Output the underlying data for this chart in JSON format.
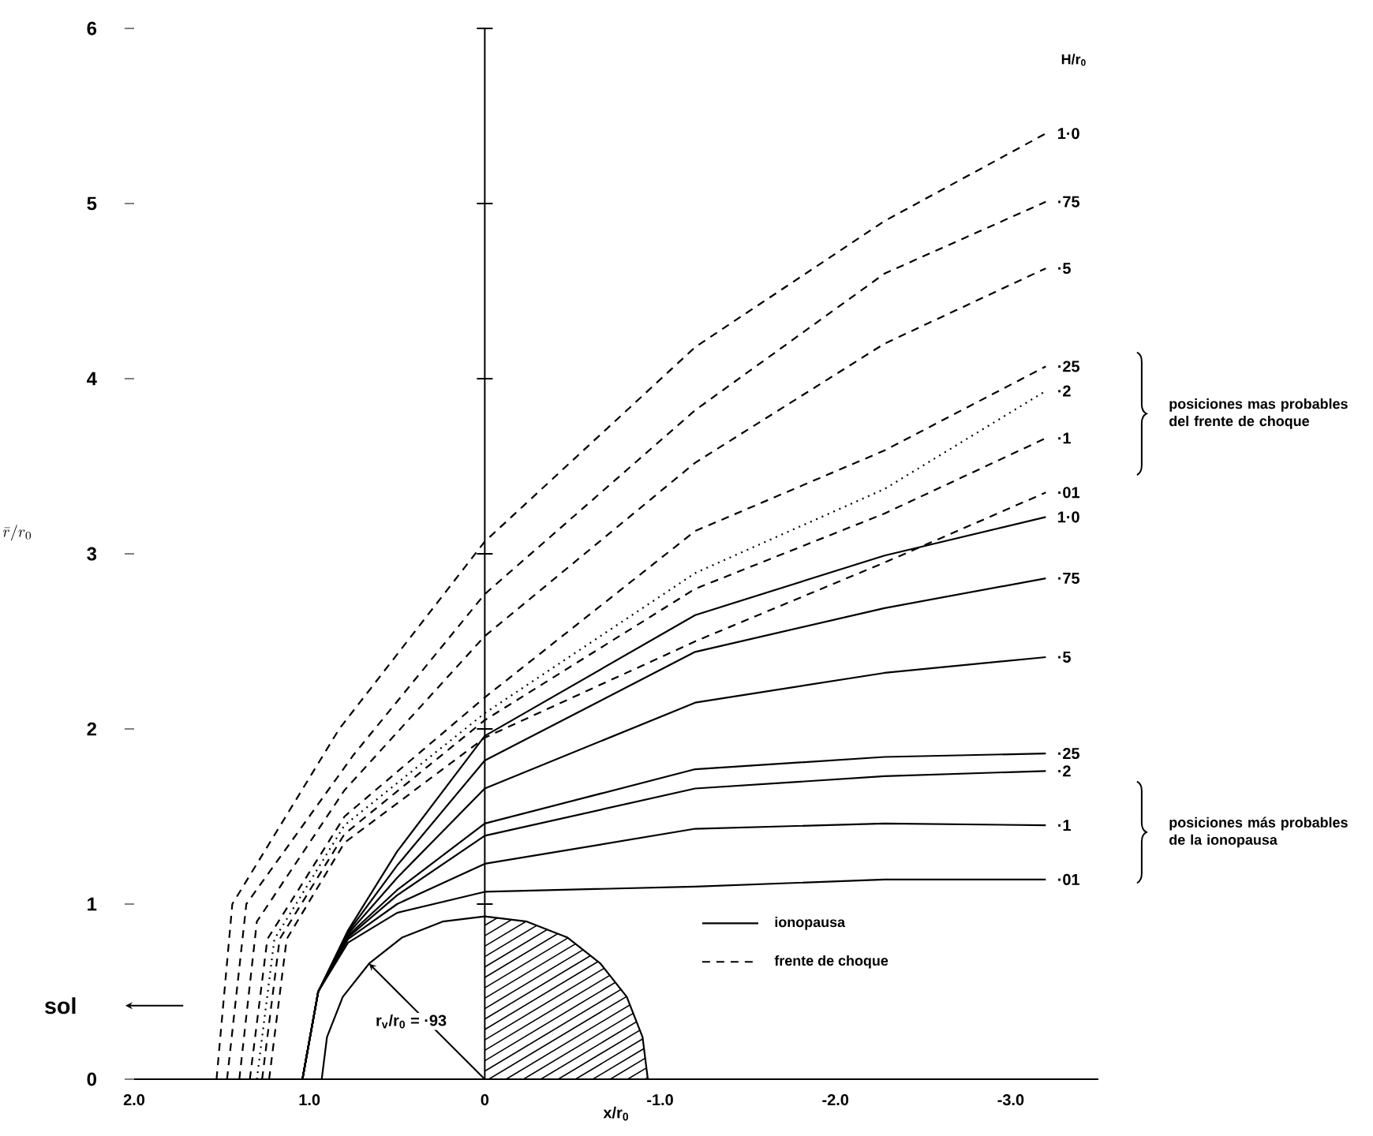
{
  "chart_data": {
    "type": "line",
    "xlabel": "x/r$_{0}$",
    "ylabel": "\\bar{r}/r_{0}",
    "xlim": [
      2.0,
      -3.5
    ],
    "ylim": [
      0,
      6
    ],
    "xticks": [
      {
        "value": 2,
        "label": "2.0"
      },
      {
        "value": 1,
        "label": "1.0"
      },
      0,
      {
        "value": -1,
        "label": "-1.0"
      },
      {
        "value": -2,
        "label": "-2.0"
      },
      {
        "value": -3,
        "label": "-3.0"
      }
    ],
    "yticks": [
      0,
      1,
      2,
      3,
      4,
      5,
      6
    ],
    "ref_lines": [
      {
        "axis": "x",
        "value": 0
      }
    ],
    "annotations": [
      "H/r$_{0}$",
      "posiciones mas probables del frente de choque",
      "posiciones más probables de la ionopausa",
      "r$_{v}$/r$_{0}$ = ·93",
      "sol",
      "ionopausa",
      "frente de choque"
    ],
    "series": [
      {
        "name": "1·0",
        "color": "#000000",
        "line_style": "dashed",
        "x": [
          1.53,
          1.44,
          0.83,
          0,
          -1.2,
          -2.28,
          -3.2
        ],
        "values": [
          0,
          1.0,
          2.0,
          3.07,
          4.18,
          4.9,
          5.4
        ]
      },
      {
        "name": "·75",
        "color": "#000000",
        "line_style": "dashed",
        "x": [
          1.47,
          1.36,
          0.75,
          0,
          -1.2,
          -2.28,
          -3.2
        ],
        "values": [
          0,
          1.0,
          1.85,
          2.77,
          3.82,
          4.6,
          5.01
        ]
      },
      {
        "name": "·5",
        "color": "#000000",
        "line_style": "dashed",
        "x": [
          1.4,
          1.3,
          0.8,
          0,
          -1.2,
          -2.28,
          -3.2
        ],
        "values": [
          0,
          0.9,
          1.65,
          2.53,
          3.52,
          4.2,
          4.63
        ]
      },
      {
        "name": "·25",
        "color": "#000000",
        "line_style": "dashed",
        "x": [
          1.34,
          1.24,
          0.8,
          0,
          -1.2,
          -2.28,
          -3.2
        ],
        "values": [
          0,
          0.8,
          1.5,
          2.18,
          3.13,
          3.59,
          4.07
        ]
      },
      {
        "name": "·2",
        "color": "#000000",
        "line_style": "dotted",
        "x": [
          1.3,
          1.2,
          0.8,
          0,
          -1.2,
          -2.28,
          -3.2
        ],
        "values": [
          0,
          0.8,
          1.45,
          2.09,
          2.89,
          3.37,
          3.93
        ]
      },
      {
        "name": "·1",
        "color": "#000000",
        "line_style": "dashed",
        "x": [
          1.27,
          1.17,
          0.8,
          0,
          -1.2,
          -2.28,
          -3.2
        ],
        "values": [
          0,
          0.8,
          1.4,
          2.05,
          2.8,
          3.23,
          3.66
        ]
      },
      {
        "name": "·01",
        "color": "#000000",
        "line_style": "dashed",
        "x": [
          1.23,
          1.13,
          0.8,
          0,
          -1.2,
          -2.28,
          -3.2
        ],
        "values": [
          0,
          0.8,
          1.35,
          1.95,
          2.5,
          2.95,
          3.35
        ]
      },
      {
        "name": "1·0",
        "color": "#000000",
        "line_style": "solid",
        "x": [
          1.04,
          0.95,
          0.78,
          0.5,
          0,
          -1.2,
          -2.28,
          -3.2
        ],
        "values": [
          0,
          0.5,
          0.85,
          1.3,
          1.96,
          2.65,
          2.99,
          3.21
        ]
      },
      {
        "name": "·75",
        "color": "#000000",
        "line_style": "solid",
        "x": [
          1.04,
          0.95,
          0.78,
          0.5,
          0,
          -1.2,
          -2.28,
          -3.2
        ],
        "values": [
          0,
          0.5,
          0.84,
          1.22,
          1.82,
          2.44,
          2.69,
          2.86
        ]
      },
      {
        "name": "·5",
        "color": "#000000",
        "line_style": "solid",
        "x": [
          1.04,
          0.95,
          0.78,
          0.5,
          0,
          -1.2,
          -2.28,
          -3.2
        ],
        "values": [
          0,
          0.5,
          0.83,
          1.15,
          1.66,
          2.15,
          2.32,
          2.41
        ]
      },
      {
        "name": "·25",
        "color": "#000000",
        "line_style": "solid",
        "x": [
          1.04,
          0.95,
          0.78,
          0.5,
          0,
          -1.2,
          -2.28,
          -3.2
        ],
        "values": [
          0,
          0.5,
          0.82,
          1.08,
          1.46,
          1.77,
          1.84,
          1.86
        ]
      },
      {
        "name": "·2",
        "color": "#000000",
        "line_style": "solid",
        "x": [
          1.04,
          0.95,
          0.78,
          0.5,
          0,
          -1.2,
          -2.28,
          -3.2
        ],
        "values": [
          0,
          0.5,
          0.81,
          1.05,
          1.39,
          1.66,
          1.73,
          1.76
        ]
      },
      {
        "name": "·1",
        "color": "#000000",
        "line_style": "solid",
        "x": [
          1.04,
          0.95,
          0.78,
          0.5,
          0,
          -1.2,
          -2.28,
          -3.2
        ],
        "values": [
          0,
          0.5,
          0.8,
          1.0,
          1.23,
          1.43,
          1.46,
          1.45
        ]
      },
      {
        "name": "·01",
        "color": "#000000",
        "line_style": "solid",
        "x": [
          1.04,
          0.95,
          0.78,
          0.5,
          0,
          -1.2,
          -2.28,
          -3.2
        ],
        "values": [
          0,
          0.5,
          0.78,
          0.95,
          1.07,
          1.1,
          1.14,
          1.14
        ]
      },
      {
        "color": "#000000",
        "line_style": "solid",
        "x": [
          0.93,
          0.9,
          0.81,
          0.66,
          0.47,
          0.24,
          0,
          -0.24,
          -0.47,
          -0.66,
          -0.81,
          -0.9,
          -0.93
        ],
        "values": [
          0,
          0.24,
          0.47,
          0.66,
          0.81,
          0.9,
          0.93,
          0.9,
          0.81,
          0.66,
          0.47,
          0.24,
          0
        ]
      }
    ]
  }
}
